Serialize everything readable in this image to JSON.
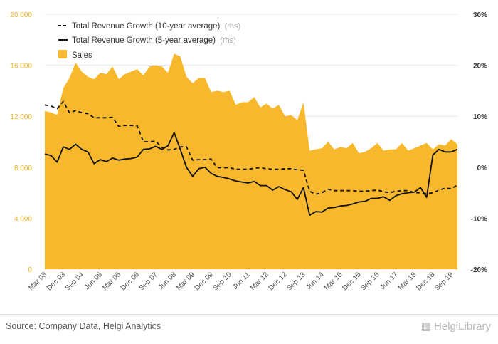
{
  "chart_data": {
    "type": "area",
    "title": "",
    "xlabel": "",
    "ylabel": "",
    "categories": [
      "Mar 03",
      "Jun 03",
      "Sep 03",
      "Dec 03",
      "Mar 04",
      "Jun 04",
      "Sep 04",
      "Dec 04",
      "Mar 05",
      "Jun 05",
      "Sep 05",
      "Dec 05",
      "Mar 06",
      "Jun 06",
      "Sep 06",
      "Dec 06",
      "Mar 07",
      "Jun 07",
      "Sep 07",
      "Dec 07",
      "Mar 08",
      "Jun 08",
      "Sep 08",
      "Dec 08",
      "Mar 09",
      "Jun 09",
      "Sep 09",
      "Dec 09",
      "Mar 10",
      "Jun 10",
      "Sep 10",
      "Dec 10",
      "Mar 11",
      "Jun 11",
      "Sep 11",
      "Dec 11",
      "Mar 12",
      "Jun 12",
      "Sep 12",
      "Dec 12",
      "Mar 13",
      "Jun 13",
      "Sep 13",
      "Dec 13",
      "Mar 14",
      "Jun 14",
      "Sep 14",
      "Dec 14",
      "Mar 15",
      "Jun 15",
      "Sep 15",
      "Dec 15",
      "Mar 16",
      "Jun 16",
      "Sep 16",
      "Dec 16",
      "Mar 17",
      "Jun 17",
      "Sep 17",
      "Dec 17",
      "Mar 18",
      "Jun 18",
      "Sep 18",
      "Dec 18",
      "Mar 19",
      "Jun 19",
      "Sep 19",
      "Dec 19"
    ],
    "x_tick_labels": [
      "Mar 03",
      "Dec 03",
      "Sep 04",
      "Jun 05",
      "Mar 06",
      "Dec 06",
      "Sep 07",
      "Jun 08",
      "Mar 09",
      "Dec 09",
      "Sep 10",
      "Jun 11",
      "Mar 12",
      "Dec 12",
      "Sep 13",
      "Jun 14",
      "Mar 15",
      "Dec 15",
      "Sep 16",
      "Jun 17",
      "Mar 18",
      "Dec 18",
      "Sep 19"
    ],
    "y_left": {
      "ticks": [
        "0",
        "4 000",
        "8 000",
        "12 000",
        "16 000",
        "20 000"
      ],
      "ylim": [
        0,
        20000
      ]
    },
    "y_right": {
      "ticks": [
        "-20%",
        "-10%",
        "0%",
        "10%",
        "20%",
        "30%"
      ],
      "ylim": [
        -20,
        30
      ]
    },
    "grid": "horizontal",
    "legend_position": "top-left",
    "series": [
      {
        "name": "Total Revenue Growth (10-year average)",
        "name_suffix": "(rhs)",
        "axis": "right",
        "style": "dashed",
        "color": "#111111",
        "values": [
          12.2,
          12.0,
          11.5,
          12.9,
          10.7,
          11.1,
          10.7,
          10.5,
          9.7,
          9.7,
          9.7,
          9.8,
          8.0,
          8.2,
          8.2,
          8.1,
          5.0,
          5.0,
          5.1,
          3.9,
          3.4,
          3.5,
          4.0,
          4.0,
          1.4,
          1.5,
          1.5,
          1.6,
          -0.1,
          -0.1,
          -0.1,
          -0.4,
          -0.4,
          -0.4,
          -0.2,
          -0.1,
          -0.3,
          -0.4,
          -0.4,
          -0.3,
          -0.3,
          -0.5,
          -0.6,
          -4.7,
          -5.3,
          -5.0,
          -4.3,
          -4.6,
          -4.6,
          -4.6,
          -4.6,
          -4.7,
          -4.7,
          -4.6,
          -4.5,
          -4.8,
          -5.0,
          -4.7,
          -4.6,
          -4.6,
          -5.0,
          -5.0,
          -5.2,
          -5.0,
          -4.5,
          -4.1,
          -4.2,
          -3.5
        ]
      },
      {
        "name": "Total Revenue Growth (5-year average)",
        "name_suffix": "(rhs)",
        "axis": "right",
        "style": "solid",
        "color": "#111111",
        "values": [
          2.6,
          2.3,
          1.0,
          4.0,
          3.5,
          4.5,
          3.5,
          3.0,
          0.7,
          1.5,
          1.1,
          1.8,
          1.4,
          1.6,
          1.7,
          2.0,
          3.5,
          3.6,
          4.1,
          3.5,
          4.2,
          6.8,
          3.5,
          0.0,
          -1.8,
          -0.3,
          0.0,
          -1.2,
          -1.8,
          -2.0,
          -2.3,
          -2.7,
          -2.9,
          -3.1,
          -2.8,
          -3.6,
          -3.6,
          -4.5,
          -3.8,
          -4.4,
          -4.8,
          -6.3,
          -4.0,
          -9.4,
          -8.7,
          -8.8,
          -8.0,
          -7.9,
          -7.6,
          -7.5,
          -7.2,
          -6.8,
          -6.7,
          -6.1,
          -6.1,
          -5.8,
          -6.5,
          -5.6,
          -5.2,
          -5.0,
          -4.9,
          -4.0,
          -5.9,
          2.4,
          3.5,
          3.0,
          3.0,
          3.5
        ]
      },
      {
        "name": "Sales",
        "axis": "left",
        "style": "area",
        "color": "#f7b82d",
        "values": [
          12400,
          12300,
          12100,
          14200,
          15000,
          16200,
          15500,
          15100,
          14900,
          15400,
          15300,
          15900,
          14900,
          15300,
          15500,
          15700,
          15200,
          15900,
          16000,
          15900,
          15400,
          16900,
          16700,
          15100,
          14600,
          15000,
          15000,
          13900,
          14000,
          13900,
          14000,
          12900,
          13100,
          13100,
          13500,
          12700,
          13000,
          12600,
          12900,
          12000,
          12100,
          11700,
          13100,
          9300,
          9400,
          9500,
          10000,
          9400,
          9600,
          9500,
          9900,
          9100,
          9200,
          9500,
          9900,
          9300,
          9400,
          9400,
          9900,
          9300,
          9500,
          9700,
          9900,
          9400,
          9800,
          9700,
          10200,
          9800
        ]
      }
    ]
  },
  "footer": {
    "source": "Source: Company Data, Helgi Analytics",
    "logo_brand": "Helgi",
    "logo_suffix": "Library"
  },
  "colors": {
    "sales": "#f7b82d",
    "grid": "#e6e6e6",
    "left_axis_text": "#f0b323"
  }
}
